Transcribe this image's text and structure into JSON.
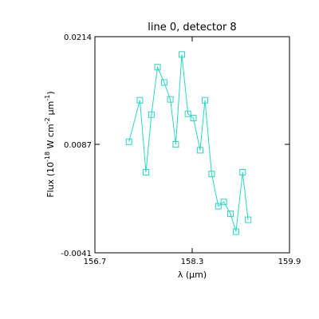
{
  "chart_data": {
    "type": "line",
    "title": "line 0, detector 8",
    "xlabel": "λ (μm)",
    "ylabel": {
      "prefix": "Flux (10",
      "sup1": "-18",
      "mid": " W cm",
      "sup2": "-2",
      "mu": "μm",
      "sup3": "-1",
      "suffix": ")"
    },
    "xlim": [
      156.7,
      159.9
    ],
    "ylim": [
      -0.0041,
      0.0214
    ],
    "xticks": [
      156.7,
      158.3,
      159.9
    ],
    "xtick_labels": [
      "156.7",
      "158.3",
      "159.9"
    ],
    "yticks": [
      -0.0041,
      0.0087,
      0.0214
    ],
    "ytick_labels": [
      "-0.0041",
      "0.0087",
      "0.0214"
    ],
    "grid": false,
    "marker": "square",
    "color": "#2ad6c1",
    "series": [
      {
        "x": [
          157.26,
          157.44,
          157.54,
          157.63,
          157.73,
          157.84,
          157.94,
          158.03,
          158.13,
          158.23,
          158.32,
          158.43,
          158.51,
          158.62,
          158.73,
          158.82,
          158.93,
          159.02,
          159.13,
          159.22
        ],
        "y": [
          0.009,
          0.0139,
          0.0054,
          0.0122,
          0.0178,
          0.016,
          0.014,
          0.0087,
          0.0193,
          0.0123,
          0.0118,
          0.008,
          0.0139,
          0.0052,
          0.0014,
          0.0019,
          0.0005,
          -0.0016,
          0.0054,
          -0.0002
        ]
      }
    ]
  }
}
